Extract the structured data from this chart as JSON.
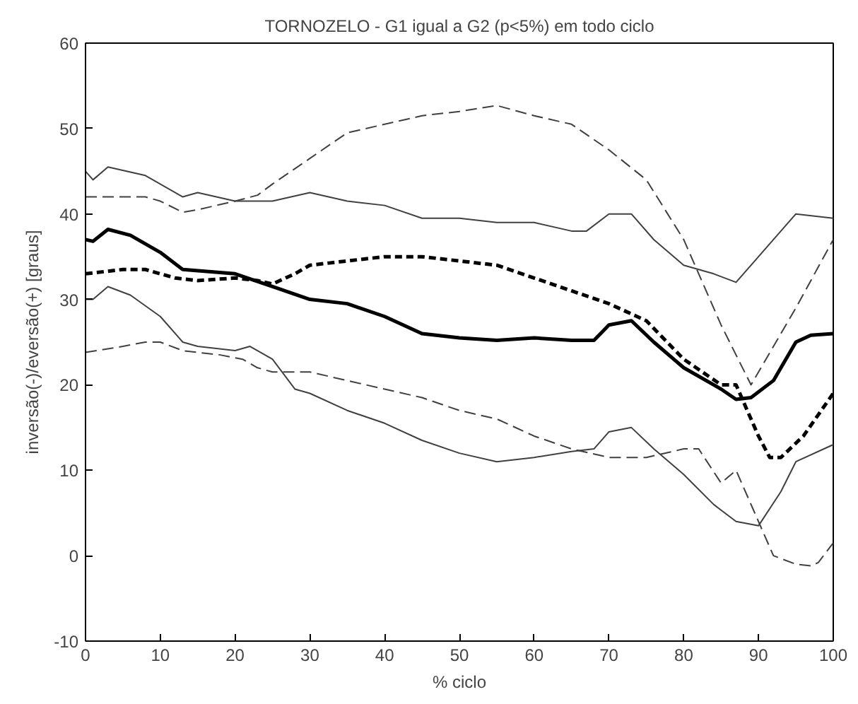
{
  "chart_data": {
    "type": "line",
    "title": "TORNOZELO - G1 igual a G2 (p<5%) em todo ciclo",
    "xlabel": "% ciclo",
    "ylabel": "inversão(-)/eversão(+) [graus]",
    "xlim": [
      0,
      100
    ],
    "ylim": [
      -10,
      60
    ],
    "xticks": [
      0,
      10,
      20,
      30,
      40,
      50,
      60,
      70,
      80,
      90,
      100
    ],
    "yticks": [
      -10,
      0,
      10,
      20,
      30,
      40,
      50,
      60
    ],
    "grid": false,
    "marker": "none",
    "series": [
      {
        "color": "#404040",
        "line_style": "solid",
        "x": [
          0,
          1,
          3,
          8,
          13,
          15,
          20,
          25,
          30,
          35,
          40,
          45,
          50,
          55,
          60,
          65,
          67,
          70,
          73,
          76,
          80,
          84,
          87,
          90,
          95,
          100
        ],
        "values": [
          45,
          44,
          45.5,
          44.5,
          42,
          42.5,
          41.5,
          41.5,
          42.5,
          41.5,
          41,
          39.5,
          39.5,
          39,
          39,
          38,
          38,
          40,
          40,
          37,
          34,
          33,
          32,
          35,
          40,
          39.5
        ]
      },
      {
        "color": "#000000",
        "line_style": "solid",
        "x": [
          0,
          1,
          3,
          6,
          10,
          13,
          20,
          25,
          30,
          35,
          40,
          45,
          50,
          55,
          60,
          65,
          68,
          70,
          73,
          76,
          80,
          85,
          87,
          89,
          92,
          95,
          97,
          100
        ],
        "values": [
          37,
          36.8,
          38.2,
          37.5,
          35.5,
          33.5,
          33,
          31.5,
          30,
          29.5,
          28,
          26,
          25.5,
          25.2,
          25.5,
          25.2,
          25.2,
          27,
          27.5,
          25,
          22,
          19.5,
          18.3,
          18.5,
          20.5,
          25,
          25.8,
          26
        ]
      },
      {
        "color": "#404040",
        "line_style": "solid",
        "x": [
          0,
          1,
          3,
          6,
          10,
          13,
          15,
          20,
          22,
          25,
          28,
          30,
          35,
          40,
          45,
          50,
          55,
          60,
          65,
          68,
          70,
          73,
          76,
          80,
          84,
          87,
          90,
          93,
          95,
          100
        ],
        "values": [
          30,
          30,
          31.5,
          30.5,
          28,
          25,
          24.5,
          24,
          24.5,
          23,
          19.5,
          19,
          17,
          15.5,
          13.5,
          12,
          11,
          11.5,
          12.2,
          12.5,
          14.5,
          15,
          12.5,
          9.5,
          6,
          4,
          3.5,
          7.5,
          11,
          13
        ]
      },
      {
        "color": "#404040",
        "line_style": "dashed",
        "x": [
          0,
          5,
          8,
          10,
          13,
          15,
          20,
          23,
          25,
          30,
          35,
          40,
          45,
          50,
          55,
          60,
          65,
          70,
          75,
          80,
          85,
          89,
          91,
          95,
          100
        ],
        "values": [
          42,
          42,
          42,
          41.5,
          40.2,
          40.5,
          41.5,
          42.2,
          43.5,
          46.5,
          49.5,
          50.5,
          51.5,
          52,
          52.7,
          51.5,
          50.5,
          47.5,
          44,
          37,
          27,
          20,
          23,
          29,
          37
        ]
      },
      {
        "color": "#000000",
        "line_style": "dashed",
        "x": [
          0,
          5,
          8,
          12,
          15,
          20,
          23,
          25,
          28,
          30,
          35,
          40,
          45,
          50,
          55,
          60,
          65,
          70,
          75,
          80,
          85,
          87,
          90,
          91.5,
          93,
          96,
          100
        ],
        "values": [
          33,
          33.5,
          33.5,
          32.5,
          32.2,
          32.5,
          32.2,
          31.8,
          33,
          34,
          34.5,
          35,
          35,
          34.5,
          34,
          32.5,
          31,
          29.5,
          27.5,
          23,
          20,
          20,
          14,
          11.5,
          11.5,
          14,
          19
        ]
      },
      {
        "color": "#404040",
        "line_style": "dashed",
        "x": [
          0,
          5,
          8,
          10,
          13,
          18,
          21,
          23,
          25,
          30,
          35,
          40,
          45,
          50,
          55,
          60,
          65,
          70,
          75,
          80,
          82,
          85,
          87,
          90,
          92,
          95,
          97,
          98,
          100
        ],
        "values": [
          23.8,
          24.5,
          25,
          25,
          24,
          23.5,
          23,
          22,
          21.5,
          21.5,
          20.5,
          19.5,
          18.5,
          17,
          16,
          14,
          12.5,
          11.5,
          11.5,
          12.5,
          12.5,
          8.5,
          10,
          4,
          0,
          -1,
          -1.2,
          -0.8,
          1.5
        ]
      }
    ]
  }
}
